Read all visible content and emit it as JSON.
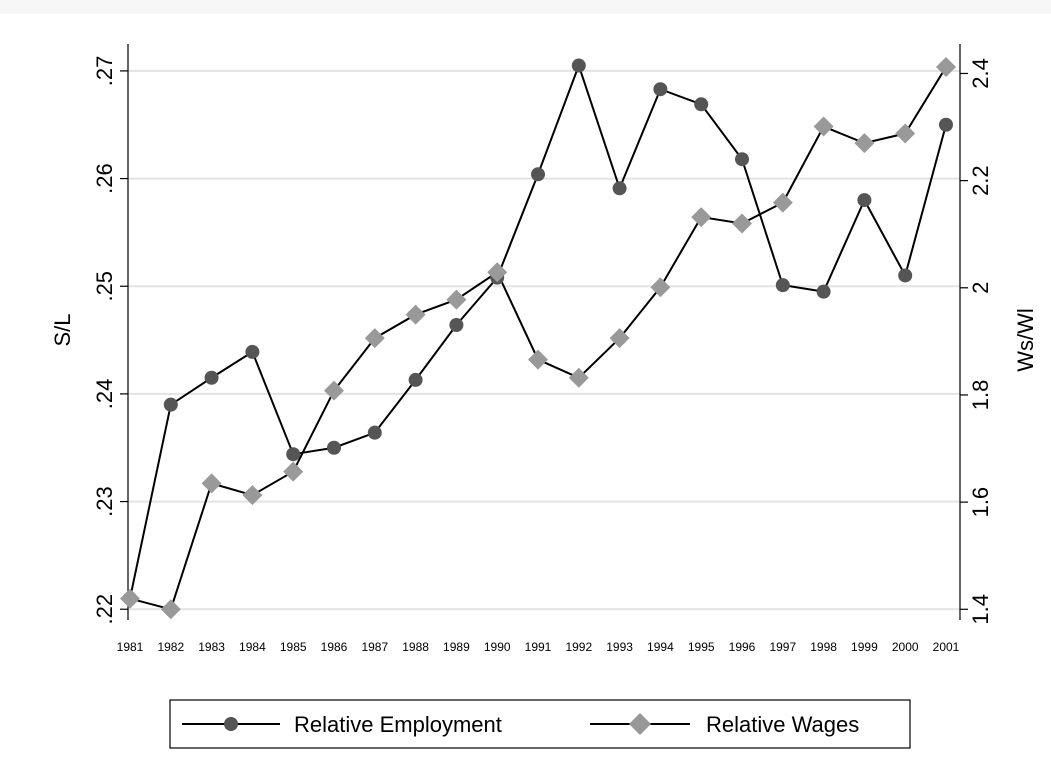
{
  "chart_data": {
    "type": "line",
    "categories": [
      "1981",
      "1982",
      "1983",
      "1984",
      "1985",
      "1986",
      "1987",
      "1988",
      "1989",
      "1990",
      "1991",
      "1992",
      "1993",
      "1994",
      "1995",
      "1996",
      "1997",
      "1998",
      "1999",
      "2000",
      "2001"
    ],
    "y_left": {
      "label": "S/L",
      "range": [
        0.219,
        0.2725
      ],
      "ticks": [
        0.22,
        0.23,
        0.24,
        0.25,
        0.26,
        0.27
      ],
      "tick_labels": [
        ".22",
        ".23",
        ".24",
        ".25",
        ".26",
        ".27"
      ]
    },
    "y_right": {
      "label": "Ws/Wl",
      "range": [
        1.38,
        2.455
      ],
      "ticks": [
        1.4,
        1.6,
        1.8,
        2.0,
        2.2,
        2.4
      ],
      "tick_labels": [
        "1.4",
        "1.6",
        "1.8",
        "2",
        "2.2",
        "2.4"
      ]
    },
    "series": [
      {
        "name": "Relative Employment",
        "axis": "left",
        "marker": "circle",
        "color": "#555555",
        "values": [
          0.221,
          0.239,
          0.2415,
          0.2439,
          0.2344,
          0.235,
          0.2364,
          0.2413,
          0.2464,
          0.2508,
          0.2604,
          0.2705,
          0.2591,
          0.2683,
          0.2669,
          0.2618,
          0.2501,
          0.2495,
          0.258,
          0.251,
          0.265
        ]
      },
      {
        "name": "Relative Wages",
        "axis": "right",
        "marker": "diamond",
        "color": "#999999",
        "values": [
          1.42,
          1.4,
          1.635,
          1.613,
          1.657,
          1.808,
          1.906,
          1.95,
          1.978,
          2.029,
          1.866,
          1.832,
          1.906,
          2.001,
          2.132,
          2.12,
          2.159,
          2.301,
          2.27,
          2.288,
          2.412
        ]
      }
    ],
    "grid": true,
    "legend": {
      "position": "bottom",
      "items": [
        "Relative Employment",
        "Relative Wages"
      ]
    }
  }
}
